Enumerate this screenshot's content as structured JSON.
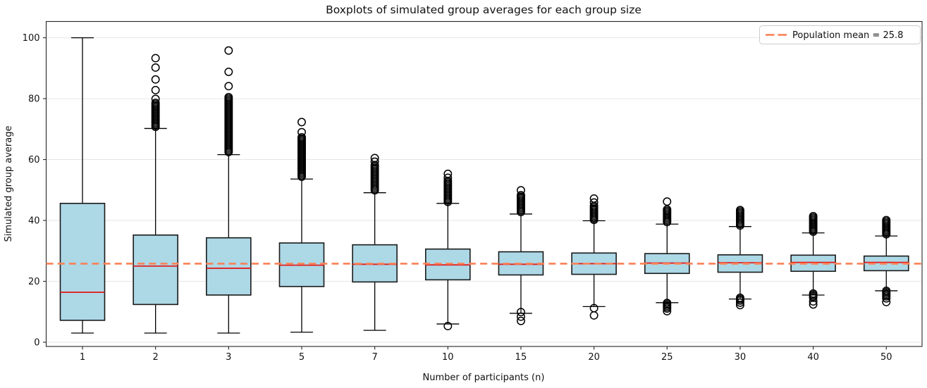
{
  "figure": {
    "background": "#ffffff"
  },
  "chart_data": {
    "type": "boxplot",
    "title": "Boxplots of simulated group averages for each group size",
    "xlabel": "Number of participants (n)",
    "ylabel": "Simulated group average",
    "ylim": [
      0,
      100
    ],
    "yticks": [
      0,
      20,
      40,
      60,
      80,
      100
    ],
    "xticklabels": [
      "1",
      "2",
      "3",
      "5",
      "7",
      "10",
      "15",
      "20",
      "25",
      "30",
      "40",
      "50"
    ],
    "grid": "horizontal",
    "population_mean": 25.8,
    "legend": {
      "position": "upper-right",
      "label": "Population mean = 25.8"
    },
    "colors": {
      "box_fill": "#add8e6",
      "box_edge": "#1a1a1a",
      "median": "#e02020",
      "mean_line": "#fa8155",
      "gridline": "#e6e6e6",
      "spine": "#262626",
      "flier": "#000000",
      "legend_border": "#cccccc"
    },
    "boxes": [
      {
        "label": "1",
        "n": 1,
        "whislo": 3.0,
        "q1": 7.2,
        "med": 16.4,
        "q3": 45.6,
        "whishi": 100.0,
        "fliers": {
          "top_points": [],
          "top_range": null,
          "bottom_points": [],
          "bottom_range": null
        }
      },
      {
        "label": "2",
        "n": 2,
        "whislo": 3.0,
        "q1": 12.4,
        "med": 25.0,
        "q3": 35.2,
        "whishi": 70.2,
        "fliers": {
          "top_points": [
            93.3,
            90.2,
            86.3,
            82.8,
            79.9
          ],
          "top_range": [
            70.5,
            78.6
          ],
          "bottom_points": [],
          "bottom_range": null
        }
      },
      {
        "label": "3",
        "n": 3,
        "whislo": 3.0,
        "q1": 15.5,
        "med": 24.3,
        "q3": 34.3,
        "whishi": 61.6,
        "fliers": {
          "top_points": [
            95.8,
            88.8,
            84.1
          ],
          "top_range": [
            62.0,
            80.5
          ],
          "bottom_points": [],
          "bottom_range": null
        }
      },
      {
        "label": "5",
        "n": 5,
        "whislo": 3.3,
        "q1": 18.3,
        "med": 25.3,
        "q3": 32.6,
        "whishi": 53.6,
        "fliers": {
          "top_points": [
            72.3,
            69.0
          ],
          "top_range": [
            54.0,
            67.3
          ],
          "bottom_points": [],
          "bottom_range": null
        }
      },
      {
        "label": "7",
        "n": 7,
        "whislo": 3.9,
        "q1": 19.8,
        "med": 25.6,
        "q3": 32.0,
        "whishi": 49.1,
        "fliers": {
          "top_points": [
            60.5,
            59.3
          ],
          "top_range": [
            49.5,
            58.2
          ],
          "bottom_points": [],
          "bottom_range": null
        }
      },
      {
        "label": "10",
        "n": 10,
        "whislo": 6.0,
        "q1": 20.5,
        "med": 25.4,
        "q3": 30.6,
        "whishi": 45.6,
        "fliers": {
          "top_points": [
            55.3,
            54.0
          ],
          "top_range": [
            45.9,
            53.0
          ],
          "bottom_points": [
            5.3
          ],
          "bottom_range": null
        }
      },
      {
        "label": "15",
        "n": 15,
        "whislo": 9.5,
        "q1": 22.1,
        "med": 25.6,
        "q3": 29.7,
        "whishi": 42.1,
        "fliers": {
          "top_points": [
            49.9
          ],
          "top_range": [
            42.4,
            48.3
          ],
          "bottom_points": [
            9.9,
            8.4,
            7.0
          ],
          "bottom_range": null
        }
      },
      {
        "label": "20",
        "n": 20,
        "whislo": 11.7,
        "q1": 22.3,
        "med": 25.8,
        "q3": 29.3,
        "whishi": 39.9,
        "fliers": {
          "top_points": [
            47.2,
            45.9
          ],
          "top_range": [
            40.1,
            44.8
          ],
          "bottom_points": [
            11.2,
            8.8
          ],
          "bottom_range": null
        }
      },
      {
        "label": "25",
        "n": 25,
        "whislo": 13.0,
        "q1": 22.6,
        "med": 26.0,
        "q3": 29.1,
        "whishi": 38.8,
        "fliers": {
          "top_points": [
            46.2
          ],
          "top_range": [
            39.0,
            43.6
          ],
          "bottom_points": [
            10.2
          ],
          "bottom_range": [
            10.8,
            12.9
          ]
        }
      },
      {
        "label": "30",
        "n": 30,
        "whislo": 14.2,
        "q1": 23.0,
        "med": 26.1,
        "q3": 28.7,
        "whishi": 38.0,
        "fliers": {
          "top_points": [],
          "top_range": [
            38.2,
            43.4
          ],
          "bottom_points": [
            13.0,
            12.2
          ],
          "bottom_range": [
            13.3,
            14.6
          ]
        }
      },
      {
        "label": "40",
        "n": 40,
        "whislo": 15.5,
        "q1": 23.3,
        "med": 26.2,
        "q3": 28.6,
        "whishi": 35.9,
        "fliers": {
          "top_points": [],
          "top_range": [
            36.1,
            41.4
          ],
          "bottom_points": [
            13.4,
            12.4
          ],
          "bottom_range": [
            14.3,
            16.0
          ]
        }
      },
      {
        "label": "50",
        "n": 50,
        "whislo": 16.9,
        "q1": 23.5,
        "med": 26.2,
        "q3": 28.3,
        "whishi": 34.9,
        "fliers": {
          "top_points": [],
          "top_range": [
            35.1,
            40.1
          ],
          "bottom_points": [
            14.4,
            13.2
          ],
          "bottom_range": [
            14.7,
            16.9
          ]
        }
      }
    ]
  }
}
